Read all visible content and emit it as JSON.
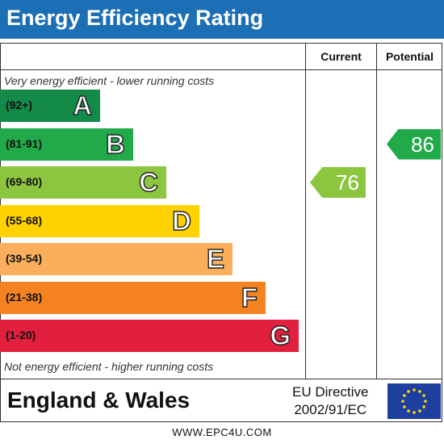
{
  "header": {
    "title": "Energy Efficiency Rating"
  },
  "columns": {
    "current": "Current",
    "potential": "Potential"
  },
  "notes": {
    "top": "Very energy efficient - lower running costs",
    "bottom": "Not energy efficient - higher running costs"
  },
  "chart_data": {
    "type": "bar",
    "categories": [
      "A",
      "B",
      "C",
      "D",
      "E",
      "F",
      "G"
    ],
    "ranges": [
      "(92+)",
      "(81-91)",
      "(69-80)",
      "(55-68)",
      "(39-54)",
      "(21-38)",
      "(1-20)"
    ],
    "colors": [
      "#138a47",
      "#21a94a",
      "#8cc63f",
      "#ffd200",
      "#fbaf5d",
      "#f58220",
      "#e21f3c"
    ],
    "current": {
      "value": 76,
      "band": "C",
      "color": "#8cc63f"
    },
    "potential": {
      "value": 86,
      "band": "B",
      "color": "#21a94a"
    }
  },
  "footer": {
    "region": "England & Wales",
    "directive_line1": "EU Directive",
    "directive_line2": "2002/91/EC",
    "website": "WWW.EPC4U.COM"
  }
}
